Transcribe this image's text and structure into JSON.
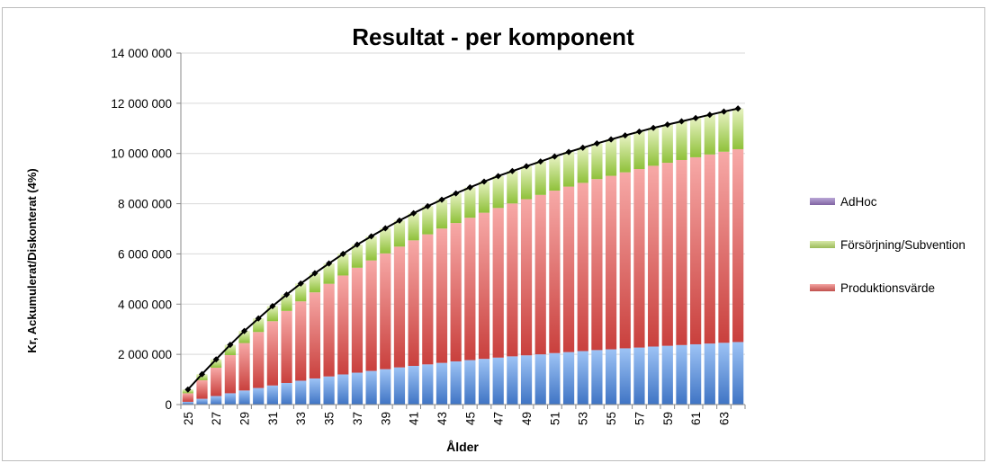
{
  "chart_data": {
    "type": "bar",
    "stacked": true,
    "title": "Resultat - per komponent",
    "xlabel": "Ålder",
    "ylabel": "Kr, Ackumulerat/Diskonterat (4%)",
    "ylim": [
      0,
      14000000
    ],
    "yticks": [
      0,
      2000000,
      4000000,
      6000000,
      8000000,
      10000000,
      12000000,
      14000000
    ],
    "ytick_labels": [
      "0",
      "2 000 000",
      "4 000 000",
      "6 000 000",
      "8 000 000",
      "10 000 000",
      "12 000 000",
      "14 000 000"
    ],
    "xtick_labels": [
      "25",
      "27",
      "29",
      "31",
      "33",
      "35",
      "37",
      "39",
      "41",
      "43",
      "45",
      "47",
      "49",
      "51",
      "53",
      "55",
      "57",
      "59",
      "61",
      "63"
    ],
    "grid": true,
    "legend_position": "right",
    "categories": [
      25,
      26,
      27,
      28,
      29,
      30,
      31,
      32,
      33,
      34,
      35,
      36,
      37,
      38,
      39,
      40,
      41,
      42,
      43,
      44,
      45,
      46,
      47,
      48,
      49,
      50,
      51,
      52,
      53,
      54,
      55,
      56,
      57,
      58,
      59,
      60,
      61,
      62,
      63,
      64
    ],
    "series": [
      {
        "name": "",
        "color": "#4f81bd",
        "values": [
          110000,
          230000,
          340000,
          450000,
          560000,
          660000,
          760000,
          860000,
          950000,
          1040000,
          1120000,
          1200000,
          1270000,
          1340000,
          1410000,
          1480000,
          1540000,
          1600000,
          1660000,
          1720000,
          1770000,
          1820000,
          1870000,
          1920000,
          1960000,
          2000000,
          2050000,
          2090000,
          2130000,
          2170000,
          2200000,
          2240000,
          2270000,
          2310000,
          2340000,
          2370000,
          2400000,
          2430000,
          2460000,
          2490000
        ]
      },
      {
        "name": "Produktionsvärde",
        "color": "#c0504d",
        "values": [
          340000,
          740000,
          1130000,
          1520000,
          1890000,
          2230000,
          2560000,
          2870000,
          3160000,
          3430000,
          3690000,
          3940000,
          4180000,
          4400000,
          4610000,
          4810000,
          5000000,
          5180000,
          5350000,
          5510000,
          5670000,
          5820000,
          5960000,
          6090000,
          6220000,
          6350000,
          6470000,
          6590000,
          6700000,
          6810000,
          6910000,
          7010000,
          7110000,
          7200000,
          7290000,
          7370000,
          7450000,
          7530000,
          7610000,
          7680000
        ]
      },
      {
        "name": "Försörjning/Subvention",
        "color": "#9bbb59",
        "values": [
          150000,
          240000,
          330000,
          410000,
          480000,
          540000,
          600000,
          650000,
          710000,
          760000,
          810000,
          860000,
          920000,
          960000,
          1000000,
          1040000,
          1080000,
          1120000,
          1150000,
          1180000,
          1210000,
          1240000,
          1270000,
          1290000,
          1310000,
          1330000,
          1360000,
          1380000,
          1400000,
          1420000,
          1450000,
          1470000,
          1490000,
          1510000,
          1520000,
          1540000,
          1560000,
          1580000,
          1600000,
          1620000
        ]
      },
      {
        "name": "AdHoc",
        "color": "#8064a2",
        "values": [
          0,
          0,
          0,
          0,
          0,
          0,
          0,
          0,
          0,
          0,
          0,
          0,
          0,
          0,
          0,
          0,
          0,
          0,
          0,
          0,
          0,
          0,
          0,
          0,
          0,
          0,
          0,
          0,
          0,
          0,
          0,
          0,
          0,
          0,
          0,
          0,
          0,
          0,
          0,
          0
        ]
      }
    ],
    "total_line": {
      "color": "#000000",
      "values": [
        600000,
        1210000,
        1800000,
        2380000,
        2930000,
        3430000,
        3920000,
        4380000,
        4820000,
        5230000,
        5620000,
        6000000,
        6370000,
        6700000,
        7020000,
        7330000,
        7620000,
        7900000,
        8160000,
        8410000,
        8650000,
        8880000,
        9100000,
        9300000,
        9490000,
        9680000,
        9880000,
        10060000,
        10230000,
        10400000,
        10560000,
        10720000,
        10870000,
        11020000,
        11150000,
        11280000,
        11410000,
        11540000,
        11670000,
        11790000
      ]
    }
  },
  "legend": [
    {
      "label": "AdHoc",
      "color": "#8064a2"
    },
    {
      "label": "Försörjning/Subvention",
      "color": "#9bbb59"
    },
    {
      "label": "Produktionsvärde",
      "color": "#c0504d"
    }
  ]
}
